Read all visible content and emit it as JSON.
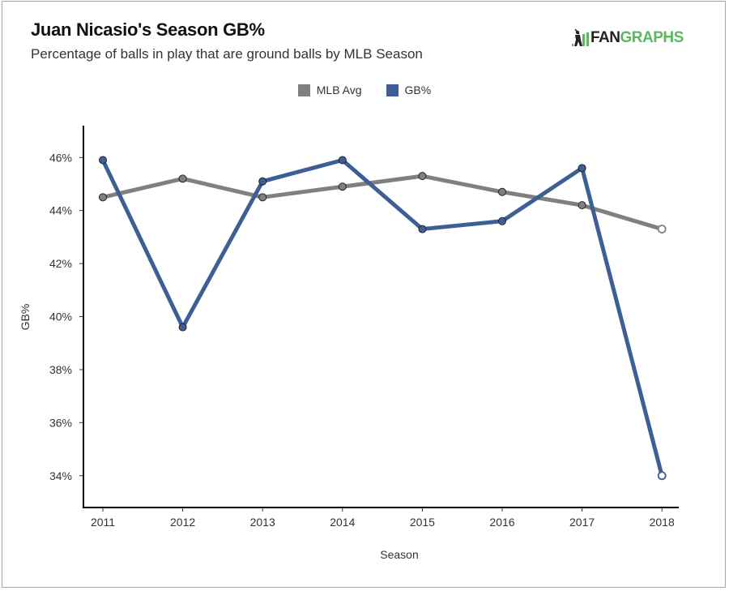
{
  "header": {
    "title": "Juan Nicasio's Season GB%",
    "subtitle": "Percentage of balls in play that are ground balls by MLB Season",
    "logo": {
      "text_dark": "FAN",
      "text_green": "GRAPHS",
      "icon": "batter-bars-logo-icon"
    }
  },
  "colors": {
    "mlb_avg": "#808080",
    "gb": "#3e5f94",
    "logo_green": "#5cb85c",
    "logo_dark": "#222222"
  },
  "chart_data": {
    "type": "line",
    "title": "Juan Nicasio's Season GB%",
    "subtitle": "Percentage of balls in play that are ground balls by MLB Season",
    "xlabel": "Season",
    "ylabel": "GB%",
    "x": [
      "2011",
      "2012",
      "2013",
      "2014",
      "2015",
      "2016",
      "2017",
      "2018"
    ],
    "ylim": [
      32.8,
      47.2
    ],
    "yticks": [
      34,
      36,
      38,
      40,
      42,
      44,
      46
    ],
    "ytick_labels": [
      "34%",
      "36%",
      "38%",
      "40%",
      "42%",
      "44%",
      "46%"
    ],
    "grid": false,
    "legend": {
      "position": "top-center",
      "entries": [
        "MLB Avg",
        "GB%"
      ]
    },
    "series": [
      {
        "name": "MLB Avg",
        "values": [
          44.5,
          45.2,
          44.5,
          44.9,
          45.3,
          44.7,
          44.2,
          43.3
        ],
        "last_point_hollow": true
      },
      {
        "name": "GB%",
        "values": [
          45.9,
          39.6,
          45.1,
          45.9,
          43.3,
          43.6,
          45.6,
          34.0
        ],
        "last_point_hollow": true
      }
    ]
  }
}
